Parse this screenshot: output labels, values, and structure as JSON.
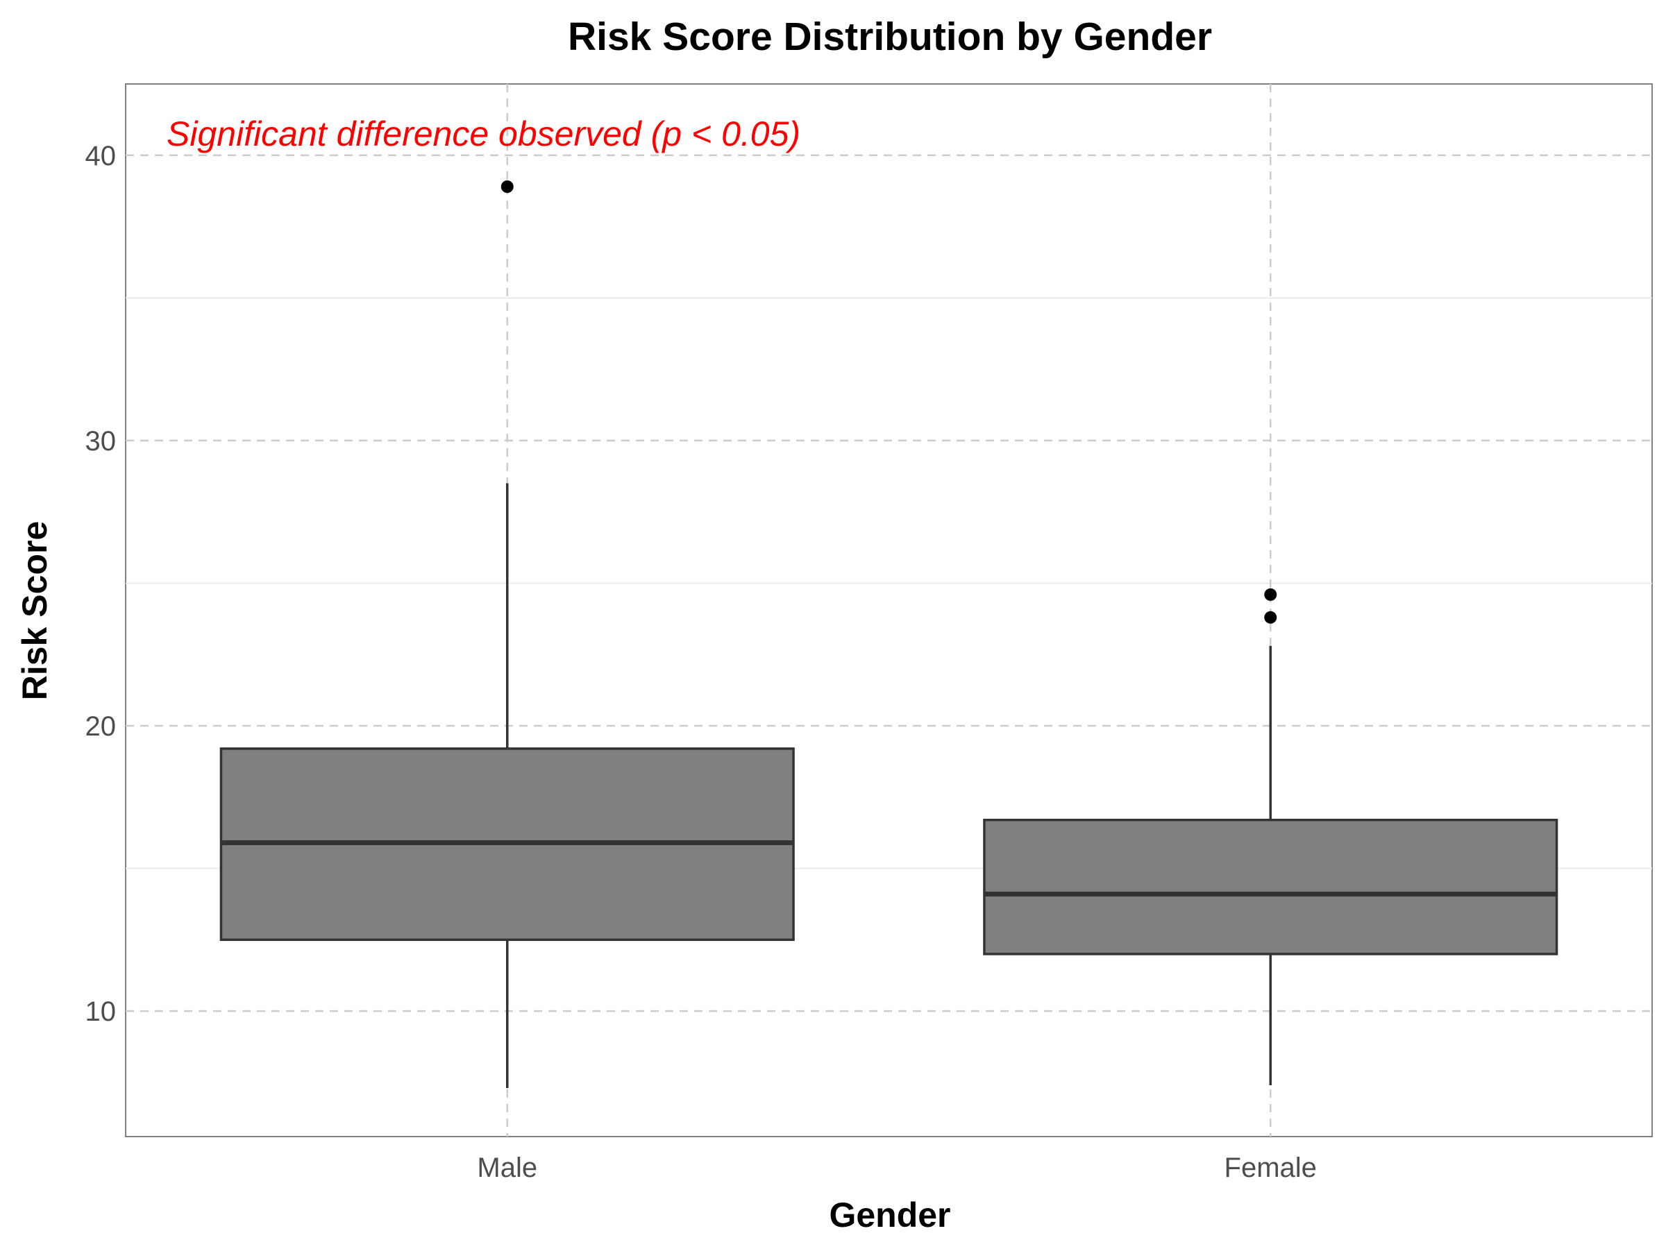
{
  "chart_data": {
    "type": "box",
    "title": "Risk Score Distribution by Gender",
    "xlabel": "Gender",
    "ylabel": "Risk Score",
    "ylim": [
      5.6,
      42.5
    ],
    "yticks": [
      10,
      20,
      30,
      40
    ],
    "grid": true,
    "annotation": {
      "text": "Significant difference observed (p < 0.05)",
      "color": "#ff0000"
    },
    "categories": [
      "Male",
      "Female"
    ],
    "boxes": [
      {
        "category": "Male",
        "whisker_low": 7.3,
        "q1": 12.5,
        "median": 15.9,
        "q3": 19.2,
        "whisker_high": 28.5,
        "outliers": [
          38.9
        ]
      },
      {
        "category": "Female",
        "whisker_low": 7.4,
        "q1": 12.0,
        "median": 14.1,
        "q3": 16.7,
        "whisker_high": 22.8,
        "outliers": [
          24.6,
          23.8
        ]
      }
    ],
    "colors": {
      "box_fill": "#808080",
      "box_stroke": "#333333",
      "outlier": "#000000",
      "grid": "#cccccc"
    }
  }
}
